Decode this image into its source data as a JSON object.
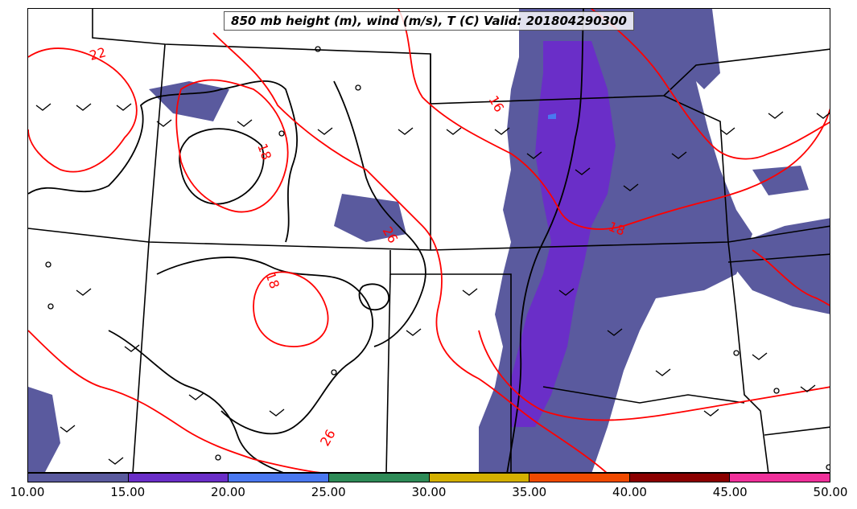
{
  "title": "850 mb height (m), wind (m/s), T (C) Valid: 201804290300",
  "colorbar": {
    "ticks": [
      "10.00",
      "15.00",
      "20.00",
      "25.00",
      "30.00",
      "35.00",
      "40.00",
      "45.00",
      "50.00"
    ],
    "colors": [
      "#5a5a9e",
      "#6a2ec8",
      "#4a78f0",
      "#2e8b57",
      "#d4b000",
      "#f04a00",
      "#8b0000",
      "#f0309a"
    ]
  },
  "temperature_labels": [
    "22",
    "18",
    "16",
    "26",
    "18",
    "18",
    "26"
  ],
  "colors": {
    "temperature_contour": "#ff0000",
    "height_contour": "#000000",
    "state_border": "#000000"
  }
}
